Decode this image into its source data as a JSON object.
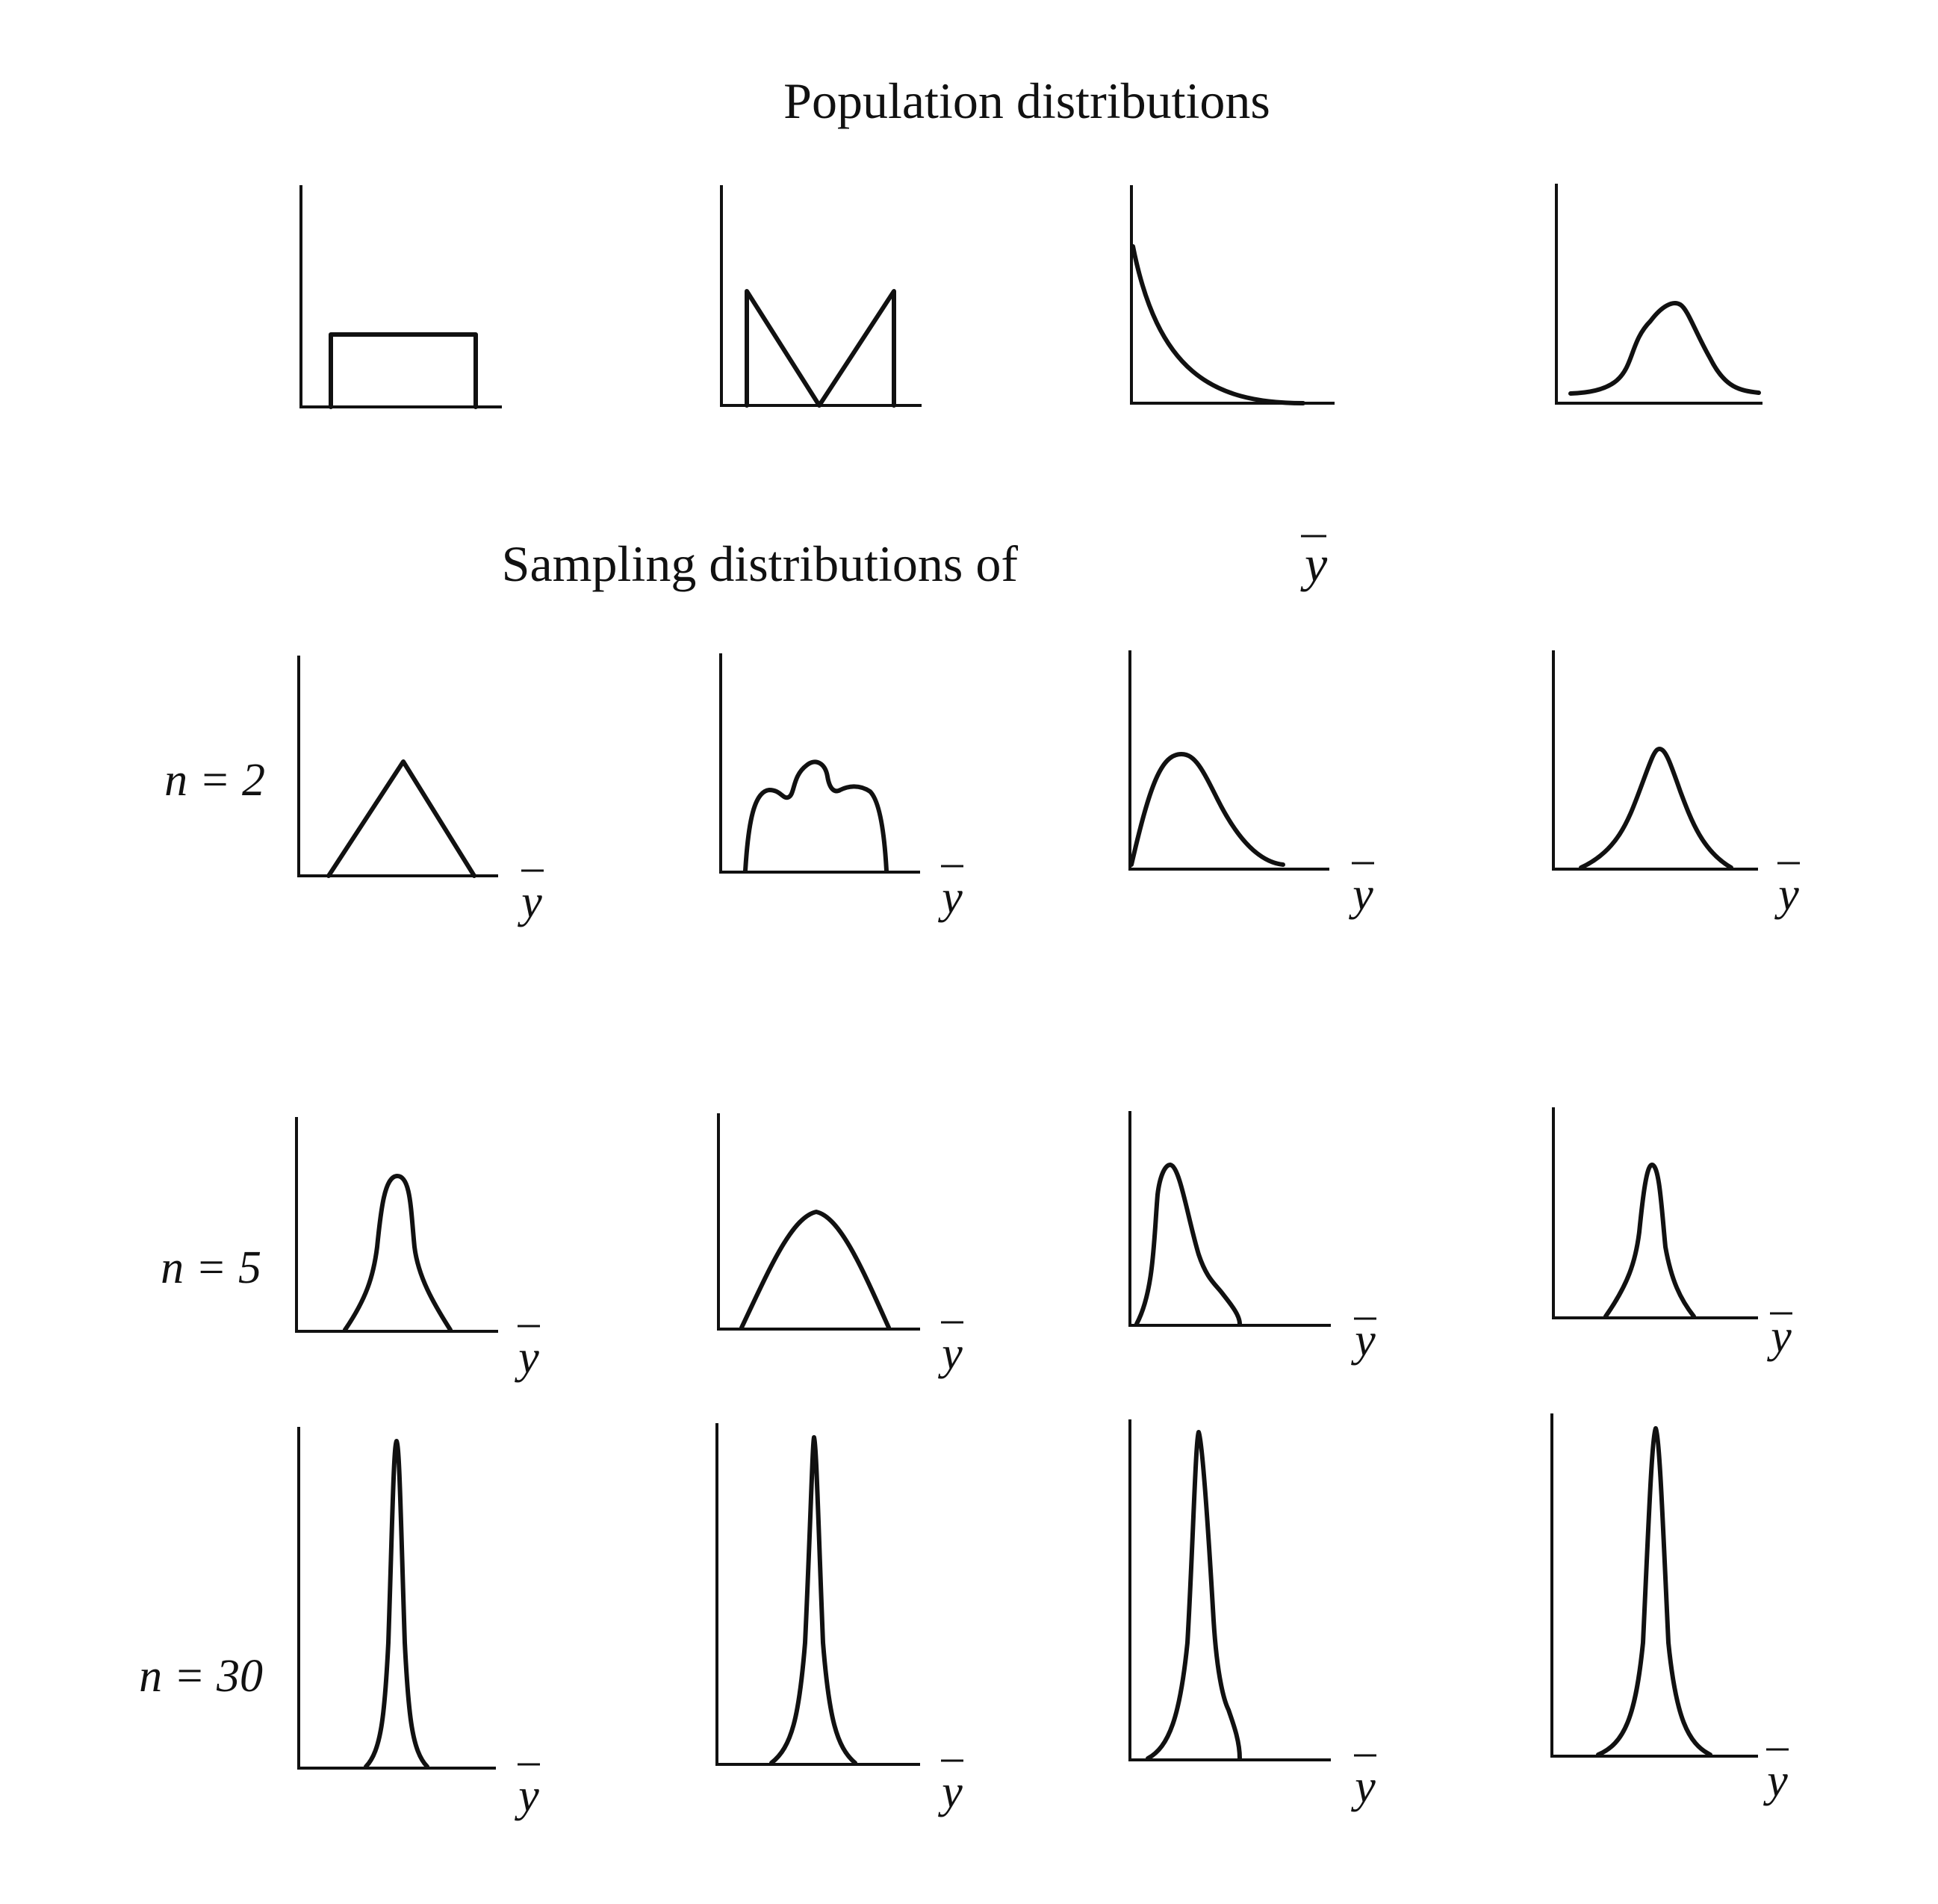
{
  "titles": {
    "population": "Population distributions",
    "sampling_prefix": "Sampling distributions of ",
    "sampling_symbol": "y"
  },
  "axis_label": "y",
  "rows": [
    {
      "label": "",
      "n": null,
      "has_axis_label": false
    },
    {
      "label": "n = 2",
      "n": 2,
      "has_axis_label": true
    },
    {
      "label": "n = 5",
      "n": 5,
      "has_axis_label": true
    },
    {
      "label": "n = 30",
      "n": 30,
      "has_axis_label": true
    }
  ],
  "columns": [
    {
      "population_shape": "uniform"
    },
    {
      "population_shape": "v-shaped (bimodal)"
    },
    {
      "population_shape": "exponential (right-skewed)"
    },
    {
      "population_shape": "bell (normal)"
    }
  ],
  "colors": {
    "ink": "#111111",
    "background": "#ffffff"
  }
}
